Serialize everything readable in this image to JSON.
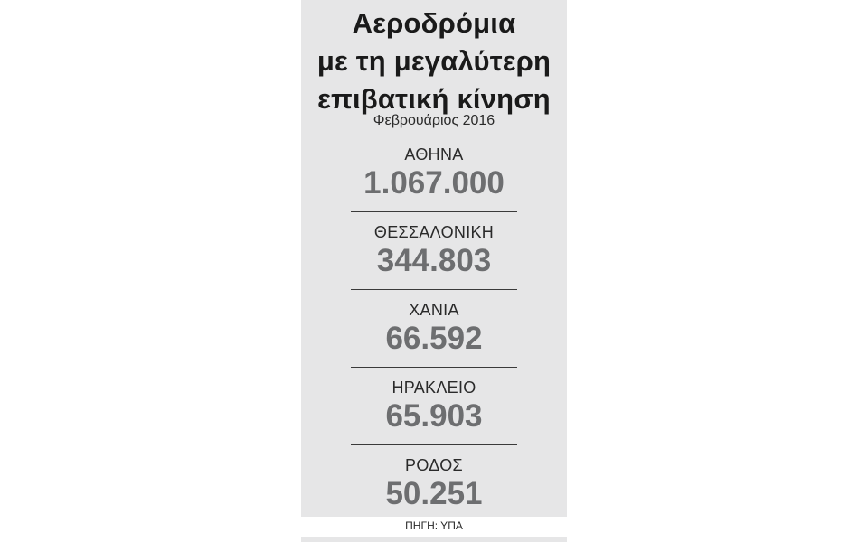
{
  "title_lines": [
    "Αεροδρόμια",
    "με τη μεγαλύτερη",
    "επιβατική κίνηση"
  ],
  "subtitle": "Φεβρουάριος 2016",
  "source": "ΠΗΓΗ: ΥΠΑ",
  "colors": {
    "panel_background": "#e6e6e7",
    "value_text": "#6d6e70",
    "label_text": "#2a2a2a"
  },
  "chart_data": {
    "type": "table",
    "title": "Αεροδρόμια με τη μεγαλύτερη επιβατική κίνηση",
    "subtitle": "Φεβρουάριος 2016",
    "categories": [
      "ΑΘΗΝΑ",
      "ΘΕΣΣΑΛΟΝΙΚΗ",
      "ΧΑΝΙΑ",
      "ΗΡΑΚΛΕΙΟ",
      "ΡΟΔΟΣ"
    ],
    "values": [
      1067000,
      344803,
      66592,
      65903,
      50251
    ],
    "value_labels": [
      "1.067.000",
      "344.803",
      "66.592",
      "65.903",
      "50.251"
    ],
    "source": "ΠΗΓΗ: ΥΠΑ"
  }
}
